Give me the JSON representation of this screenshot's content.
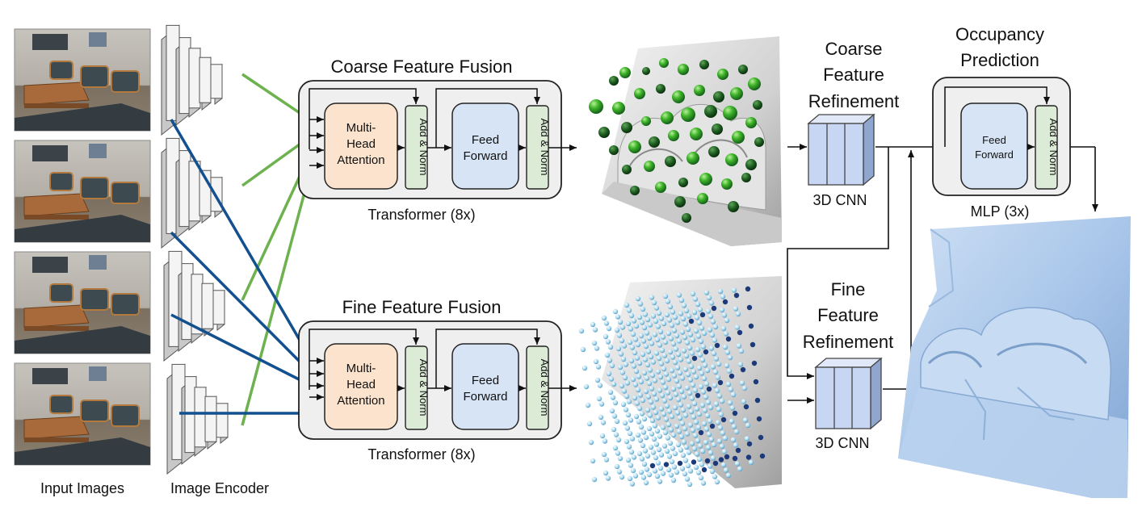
{
  "labels": {
    "input_images": "Input Images",
    "image_encoder": "Image Encoder",
    "coarse_fusion_title": "Coarse Feature Fusion",
    "fine_fusion_title": "Fine Feature Fusion",
    "transformer_coarse": "Transformer (8x)",
    "transformer_fine": "Transformer (8x)",
    "mha_line1": "Multi-",
    "mha_line2": "Head",
    "mha_line3": "Attention",
    "add_norm": "Add & Norm",
    "ff_line1": "Feed",
    "ff_line2": "Forward",
    "coarse_ref_line1": "Coarse",
    "coarse_ref_line2": "Feature",
    "coarse_ref_line3": "Refinement",
    "fine_ref_line1": "Fine",
    "fine_ref_line2": "Feature",
    "fine_ref_line3": "Refinement",
    "cnn_coarse": "3D CNN",
    "cnn_fine": "3D CNN",
    "occ_line1": "Occupancy",
    "occ_line2": "Prediction",
    "mlp": "MLP (3x)"
  },
  "colors": {
    "attention": "#fce3cd",
    "feed_forward": "#d6e4f6",
    "add_norm": "#dcebd5",
    "block_bg": "#efefef",
    "coarse_link": "#6db24f",
    "fine_link": "#12508f",
    "cnn_face": "#c7d6f2",
    "mesh_final": "#a9c6ea"
  }
}
